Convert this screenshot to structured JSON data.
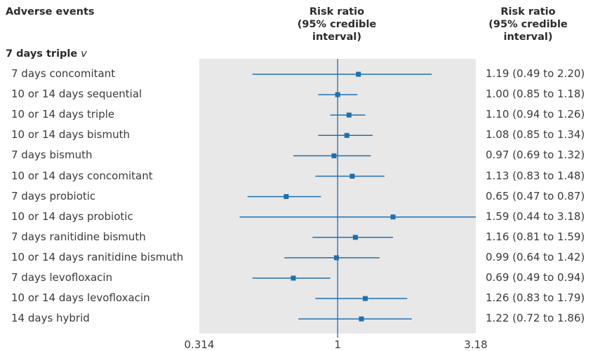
{
  "headers": {
    "left": "Adverse events",
    "center_lines": [
      "Risk ratio",
      "(95% credible",
      "interval)"
    ],
    "right_lines": [
      "Risk ratio",
      "(95% credible",
      "interval)"
    ]
  },
  "reference": {
    "label": "7 days triple",
    "suffix": "v"
  },
  "colors": {
    "marker": "#1f6fae",
    "panel": "#e8e8e8"
  },
  "chart_data": {
    "type": "forest",
    "measure": "Risk ratio",
    "scale": "log",
    "xlim": [
      0.314,
      3.18
    ],
    "ticks": [
      0.314,
      1,
      3.18
    ],
    "tick_labels": [
      "0.314",
      "1",
      "3.18"
    ],
    "reference_line": 1,
    "rows": [
      {
        "label": "7 days concomitant",
        "est": 1.19,
        "lo": 0.49,
        "hi": 2.2,
        "ci_text": "1.19 (0.49 to 2.20)"
      },
      {
        "label": "10 or 14 days sequential",
        "est": 1.0,
        "lo": 0.85,
        "hi": 1.18,
        "ci_text": "1.00 (0.85 to 1.18)"
      },
      {
        "label": "10 or 14 days triple",
        "est": 1.1,
        "lo": 0.94,
        "hi": 1.26,
        "ci_text": "1.10 (0.94 to 1.26)"
      },
      {
        "label": "10 or 14 days bismuth",
        "est": 1.08,
        "lo": 0.85,
        "hi": 1.34,
        "ci_text": "1.08 (0.85 to 1.34)"
      },
      {
        "label": "7 days bismuth",
        "est": 0.97,
        "lo": 0.69,
        "hi": 1.32,
        "ci_text": "0.97 (0.69 to 1.32)"
      },
      {
        "label": "10 or 14 days concomitant",
        "est": 1.13,
        "lo": 0.83,
        "hi": 1.48,
        "ci_text": "1.13 (0.83 to 1.48)"
      },
      {
        "label": "7 days probiotic",
        "est": 0.65,
        "lo": 0.47,
        "hi": 0.87,
        "ci_text": "0.65 (0.47 to 0.87)"
      },
      {
        "label": "10 or 14 days probiotic",
        "est": 1.59,
        "lo": 0.44,
        "hi": 3.18,
        "ci_text": "1.59 (0.44 to 3.18)"
      },
      {
        "label": "7 days ranitidine bismuth",
        "est": 1.16,
        "lo": 0.81,
        "hi": 1.59,
        "ci_text": "1.16 (0.81 to 1.59)"
      },
      {
        "label": "10 or 14 days ranitidine bismuth",
        "est": 0.99,
        "lo": 0.64,
        "hi": 1.42,
        "ci_text": "0.99 (0.64 to 1.42)"
      },
      {
        "label": "7 days levofloxacin",
        "est": 0.69,
        "lo": 0.49,
        "hi": 0.94,
        "ci_text": "0.69 (0.49 to 0.94)"
      },
      {
        "label": "10 or 14 days levofloxacin",
        "est": 1.26,
        "lo": 0.83,
        "hi": 1.79,
        "ci_text": "1.26 (0.83 to 1.79)"
      },
      {
        "label": "14 days hybrid",
        "est": 1.22,
        "lo": 0.72,
        "hi": 1.86,
        "ci_text": "1.22 (0.72 to 1.86)"
      }
    ]
  }
}
